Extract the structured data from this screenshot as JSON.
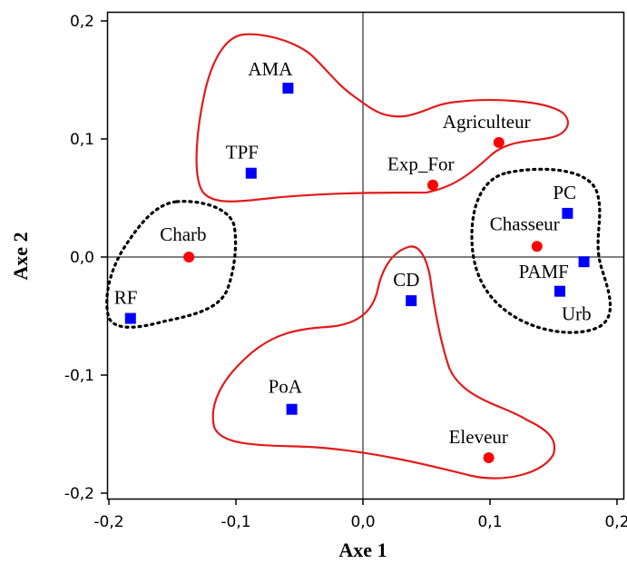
{
  "chart_data": {
    "type": "scatter",
    "title": "",
    "xlabel": "Axe 1",
    "ylabel": "Axe 2",
    "xlim": [
      -0.2,
      0.2
    ],
    "ylim": [
      -0.2,
      0.2
    ],
    "x_ticks": [
      "-0,2",
      "-0,1",
      "0,0",
      "0,1",
      "0,2"
    ],
    "y_ticks": [
      "0,2",
      "0,1",
      "0,0",
      "-0,1",
      "-0,2"
    ],
    "grid": false,
    "reference_lines": {
      "x": 0,
      "y": 0
    },
    "series": [
      {
        "marker": "circle",
        "color": "#ff0000",
        "points": [
          {
            "label": "Agriculteur",
            "x": 0.107,
            "y": 0.097
          },
          {
            "label": "Exp_For",
            "x": 0.055,
            "y": 0.061
          },
          {
            "label": "Charb",
            "x": -0.137,
            "y": 0.0
          },
          {
            "label": "Chasseur",
            "x": 0.137,
            "y": 0.009
          },
          {
            "label": "Eleveur",
            "x": 0.099,
            "y": -0.17
          }
        ]
      },
      {
        "marker": "square",
        "color": "#0000ff",
        "points": [
          {
            "label": "AMA",
            "x": -0.059,
            "y": 0.143
          },
          {
            "label": "TPF",
            "x": -0.088,
            "y": 0.071
          },
          {
            "label": "PC",
            "x": 0.161,
            "y": 0.037
          },
          {
            "label": "PAMF",
            "x": 0.174,
            "y": -0.004
          },
          {
            "label": "Urb",
            "x": 0.155,
            "y": -0.029
          },
          {
            "label": "CD",
            "x": 0.038,
            "y": -0.037
          },
          {
            "label": "RF",
            "x": -0.183,
            "y": -0.052
          },
          {
            "label": "PoA",
            "x": -0.056,
            "y": -0.129
          }
        ]
      }
    ],
    "groupings": [
      {
        "style": "solid",
        "color": "#e21a1a",
        "members": [
          "AMA",
          "TPF",
          "Exp_For",
          "Agriculteur"
        ]
      },
      {
        "style": "solid",
        "color": "#e21a1a",
        "members": [
          "CD",
          "PoA",
          "Eleveur"
        ]
      },
      {
        "style": "dotted",
        "color": "#000000",
        "members": [
          "Charb",
          "RF"
        ]
      },
      {
        "style": "dotted",
        "color": "#000000",
        "members": [
          "PC",
          "Chasseur",
          "PAMF",
          "Urb"
        ]
      }
    ]
  }
}
